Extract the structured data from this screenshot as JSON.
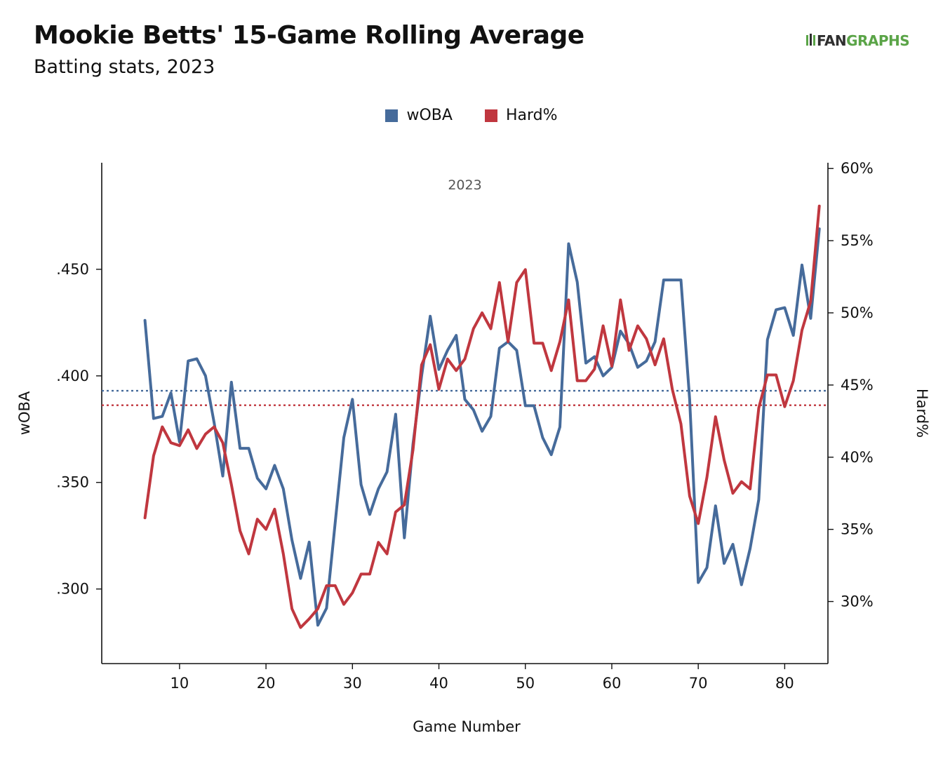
{
  "header": {
    "title": "Mookie Betts' 15-Game Rolling Average",
    "subtitle": "Batting stats, 2023",
    "logo_part1": "FAN",
    "logo_part2": "GRAPHS"
  },
  "colors": {
    "woba": "#466b9b",
    "hard": "#c0373f"
  },
  "chart_data": {
    "type": "line",
    "title": "Mookie Betts' 15-Game Rolling Average",
    "subtitle": "Batting stats, 2023",
    "facet_label": "2023",
    "xlabel": "Game Number",
    "ylabel_left": "wOBA",
    "ylabel_right": "Hard%",
    "xlim": [
      1,
      85
    ],
    "ylim_left": [
      0.265,
      0.5
    ],
    "ylim_right": [
      25.7,
      60.4
    ],
    "x_ticks": [
      10,
      20,
      30,
      40,
      50,
      60,
      70,
      80
    ],
    "y_left_ticks": [
      ".300",
      ".350",
      ".400",
      ".450"
    ],
    "y_left_tick_values": [
      0.3,
      0.35,
      0.4,
      0.45
    ],
    "y_right_ticks": [
      "30%",
      "35%",
      "40%",
      "45%",
      "50%",
      "55%",
      "60%"
    ],
    "y_right_tick_values": [
      30,
      35,
      40,
      45,
      50,
      55,
      60
    ],
    "legend": {
      "position": "top-center",
      "items": [
        "wOBA",
        "Hard%"
      ]
    },
    "grid": false,
    "reference_lines": {
      "woba_avg": 0.393,
      "hard_avg": 43.6
    },
    "x": [
      6,
      7,
      8,
      9,
      10,
      11,
      12,
      13,
      14,
      15,
      16,
      17,
      18,
      19,
      20,
      21,
      22,
      23,
      24,
      25,
      26,
      27,
      28,
      29,
      30,
      31,
      32,
      33,
      34,
      35,
      36,
      37,
      38,
      39,
      40,
      41,
      42,
      43,
      44,
      45,
      46,
      47,
      48,
      49,
      50,
      51,
      52,
      53,
      54,
      55,
      56,
      57,
      58,
      59,
      60,
      61,
      62,
      63,
      64,
      65,
      66,
      67,
      68,
      69,
      70,
      71,
      72,
      73,
      74,
      75,
      76,
      77,
      78,
      79,
      80,
      81,
      82,
      83,
      84
    ],
    "series": [
      {
        "name": "wOBA",
        "axis": "left",
        "values": [
          0.426,
          0.38,
          0.381,
          0.392,
          0.369,
          0.407,
          0.408,
          0.4,
          0.378,
          0.353,
          0.397,
          0.366,
          0.366,
          0.352,
          0.347,
          0.358,
          0.347,
          0.323,
          0.305,
          0.322,
          0.283,
          0.291,
          0.331,
          0.371,
          0.389,
          0.349,
          0.335,
          0.347,
          0.355,
          0.382,
          0.324,
          0.368,
          0.4,
          0.428,
          0.403,
          0.412,
          0.419,
          0.389,
          0.384,
          0.374,
          0.381,
          0.413,
          0.416,
          0.412,
          0.386,
          0.386,
          0.371,
          0.363,
          0.376,
          0.462,
          0.444,
          0.406,
          0.409,
          0.4,
          0.404,
          0.421,
          0.415,
          0.404,
          0.407,
          0.416,
          0.445,
          0.445,
          0.445,
          0.389,
          0.303,
          0.31,
          0.339,
          0.312,
          0.321,
          0.302,
          0.319,
          0.342,
          0.417,
          0.431,
          0.432,
          0.419,
          0.452,
          0.427,
          0.469
        ]
      },
      {
        "name": "Hard%",
        "axis": "right",
        "values": [
          35.8,
          40.1,
          42.1,
          41.0,
          40.8,
          41.9,
          40.6,
          41.6,
          42.1,
          41.0,
          38.1,
          34.9,
          33.3,
          35.7,
          35.0,
          36.4,
          33.3,
          29.5,
          28.2,
          28.8,
          29.5,
          31.1,
          31.1,
          29.8,
          30.6,
          31.9,
          31.9,
          34.1,
          33.3,
          36.2,
          36.7,
          40.5,
          46.4,
          47.8,
          44.7,
          46.8,
          46.0,
          46.8,
          48.9,
          50.0,
          48.9,
          52.1,
          48.0,
          52.1,
          53.0,
          47.9,
          47.9,
          46.0,
          48.0,
          50.9,
          45.3,
          45.3,
          46.1,
          49.1,
          46.3,
          50.9,
          47.4,
          49.1,
          48.2,
          46.4,
          48.2,
          44.7,
          42.3,
          37.3,
          35.4,
          38.6,
          42.8,
          39.8,
          37.5,
          38.3,
          37.8,
          43.4,
          45.7,
          45.7,
          43.5,
          45.3,
          48.8,
          50.8,
          57.4
        ]
      }
    ]
  }
}
